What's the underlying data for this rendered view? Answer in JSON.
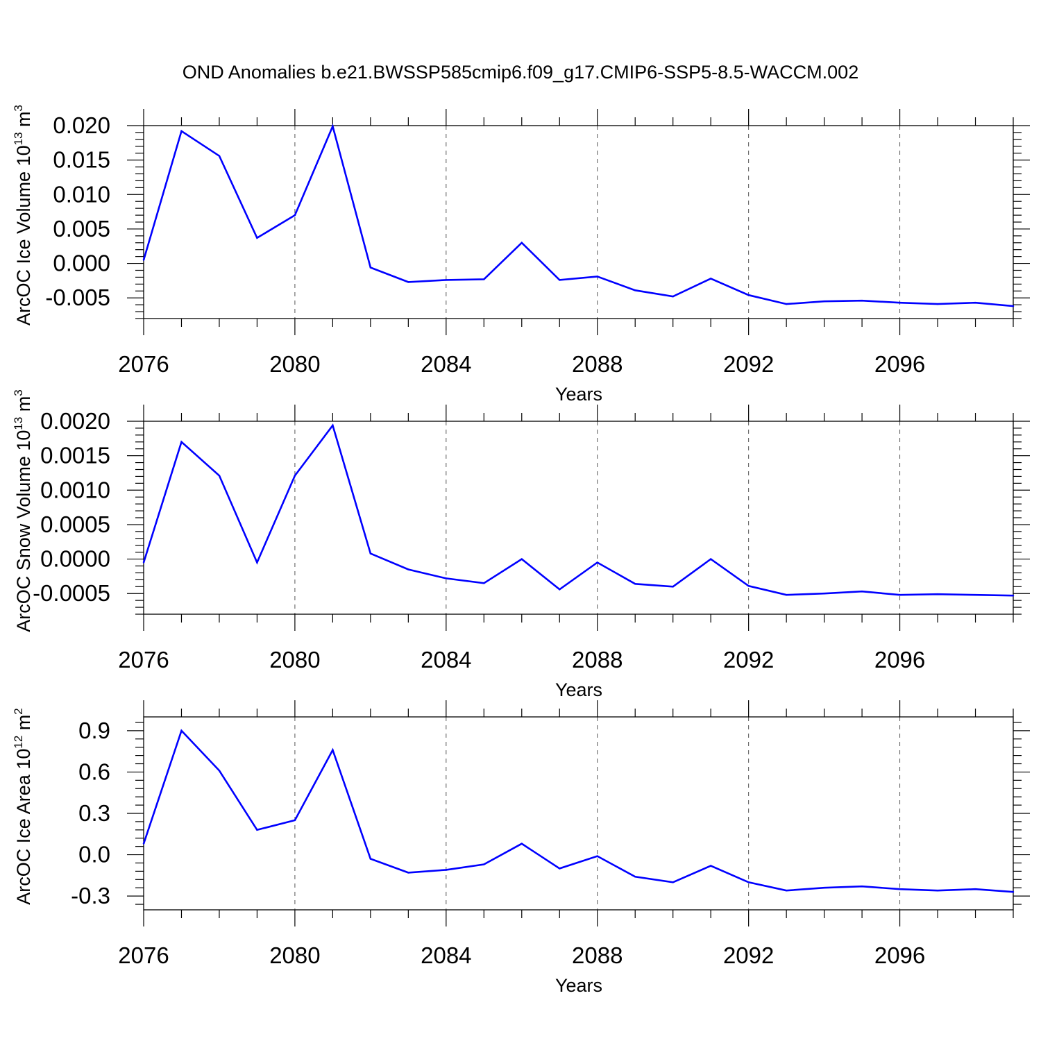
{
  "title": "OND Anomalies b.e21.BWSSP585cmip6.f09_g17.CMIP6-SSP5-8.5-WACCM.002",
  "line_color": "#0000ff",
  "chart_data": [
    {
      "type": "line",
      "title": "OND Anomalies b.e21.BWSSP585cmip6.f09_g17.CMIP6-SSP5-8.5-WACCM.002",
      "xlabel": "Years",
      "ylabel": {
        "text": "ArcOC Ice Volume 10",
        "exp": "13",
        "unit": " m",
        "unit_exp": "3"
      },
      "xlim": [
        2076,
        2099
      ],
      "ylim": [
        -0.008,
        0.02
      ],
      "xticks": [
        2076,
        2080,
        2084,
        2088,
        2092,
        2096
      ],
      "yticks": [
        -0.005,
        0.0,
        0.005,
        0.01,
        0.015,
        0.02
      ],
      "yticklabels": [
        "-0.005",
        "0.000",
        "0.005",
        "0.010",
        "0.015",
        "0.020"
      ],
      "grid": "dashed vertical at major x ticks",
      "x": [
        2076,
        2077,
        2078,
        2079,
        2080,
        2081,
        2082,
        2083,
        2084,
        2085,
        2086,
        2087,
        2088,
        2089,
        2090,
        2091,
        2092,
        2093,
        2094,
        2095,
        2096,
        2097,
        2098,
        2099
      ],
      "series": [
        {
          "values": [
            0.0005,
            0.0192,
            0.0156,
            0.0037,
            0.007,
            0.0199,
            -0.0006,
            -0.0027,
            -0.0024,
            -0.0023,
            0.003,
            -0.0024,
            -0.0019,
            -0.0039,
            -0.0048,
            -0.0022,
            -0.0046,
            -0.0059,
            -0.0055,
            -0.0054,
            -0.0057,
            -0.0059,
            -0.0057,
            -0.0062
          ]
        }
      ]
    },
    {
      "type": "line",
      "xlabel": "Years",
      "ylabel": {
        "text": "ArcOC Snow Volume 10",
        "exp": "13",
        "unit": " m",
        "unit_exp": "3"
      },
      "xlim": [
        2076,
        2099
      ],
      "ylim": [
        -0.0008,
        0.002
      ],
      "xticks": [
        2076,
        2080,
        2084,
        2088,
        2092,
        2096
      ],
      "yticks": [
        -0.0005,
        0.0,
        0.0005,
        0.001,
        0.0015,
        0.002
      ],
      "yticklabels": [
        "-0.0005",
        "0.0000",
        "0.0005",
        "0.0010",
        "0.0015",
        "0.0020"
      ],
      "grid": "dashed vertical at major x ticks",
      "x": [
        2076,
        2077,
        2078,
        2079,
        2080,
        2081,
        2082,
        2083,
        2084,
        2085,
        2086,
        2087,
        2088,
        2089,
        2090,
        2091,
        2092,
        2093,
        2094,
        2095,
        2096,
        2097,
        2098,
        2099
      ],
      "series": [
        {
          "values": [
            -5e-05,
            0.0017,
            0.00121,
            -5e-05,
            0.00121,
            0.00194,
            8e-05,
            -0.00015,
            -0.00028,
            -0.00035,
            0.0,
            -0.00044,
            -5e-05,
            -0.00036,
            -0.0004,
            0.0,
            -0.00039,
            -0.00052,
            -0.0005,
            -0.00047,
            -0.00052,
            -0.00051,
            -0.00052,
            -0.00053
          ]
        }
      ]
    },
    {
      "type": "line",
      "xlabel": "Years",
      "ylabel": {
        "text": "ArcOC Ice Area 10",
        "exp": "12",
        "unit": " m",
        "unit_exp": "2"
      },
      "xlim": [
        2076,
        2099
      ],
      "ylim": [
        -0.4,
        1.0
      ],
      "xticks": [
        2076,
        2080,
        2084,
        2088,
        2092,
        2096
      ],
      "yticks": [
        -0.3,
        0.0,
        0.3,
        0.6,
        0.9
      ],
      "yticklabels": [
        "-0.3",
        "0.0",
        "0.3",
        "0.6",
        "0.9"
      ],
      "grid": "dashed vertical at major x ticks",
      "x": [
        2076,
        2077,
        2078,
        2079,
        2080,
        2081,
        2082,
        2083,
        2084,
        2085,
        2086,
        2087,
        2088,
        2089,
        2090,
        2091,
        2092,
        2093,
        2094,
        2095,
        2096,
        2097,
        2098,
        2099
      ],
      "series": [
        {
          "values": [
            0.08,
            0.9,
            0.61,
            0.18,
            0.25,
            0.76,
            -0.03,
            -0.13,
            -0.11,
            -0.07,
            0.08,
            -0.1,
            -0.01,
            -0.16,
            -0.2,
            -0.08,
            -0.2,
            -0.26,
            -0.24,
            -0.23,
            -0.25,
            -0.26,
            -0.25,
            -0.27
          ]
        }
      ]
    }
  ]
}
